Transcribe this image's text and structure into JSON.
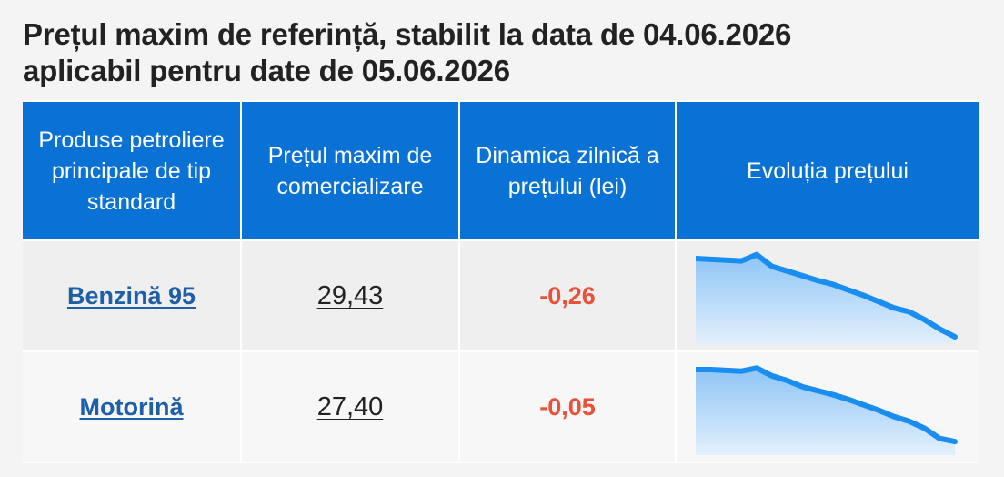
{
  "header": {
    "title_line1": "Prețul maxim de referință, stabilit la data de 04.06.2026",
    "title_line2": "aplicabil pentru date de 05.06.2026"
  },
  "table": {
    "columns": [
      "Produse petroliere principale de tip standard",
      "Prețul maxim de comercializare",
      "Dinamica zilnică a prețului (lei)",
      "Evoluția prețului"
    ],
    "rows": [
      {
        "product": "Benzină 95",
        "price": "29,43",
        "delta": "-0,26"
      },
      {
        "product": "Motorină",
        "price": "27,40",
        "delta": "-0,05"
      }
    ]
  },
  "colors": {
    "header_bg": "#0a72d4",
    "link": "#1f5fa8",
    "negative": "#e8523a",
    "spark_line": "#1a8df0"
  },
  "sparklines": [
    {
      "trend": [
        0.0,
        0.01,
        0.02,
        0.03,
        -0.05,
        0.1,
        0.16,
        0.22,
        0.28,
        0.33,
        0.4,
        0.47,
        0.55,
        0.63,
        0.68,
        0.78,
        0.9,
        1.0
      ]
    },
    {
      "trend": [
        0.0,
        0.0,
        0.01,
        0.02,
        -0.02,
        0.08,
        0.14,
        0.22,
        0.27,
        0.32,
        0.38,
        0.45,
        0.52,
        0.6,
        0.66,
        0.75,
        0.88,
        0.92
      ]
    }
  ]
}
